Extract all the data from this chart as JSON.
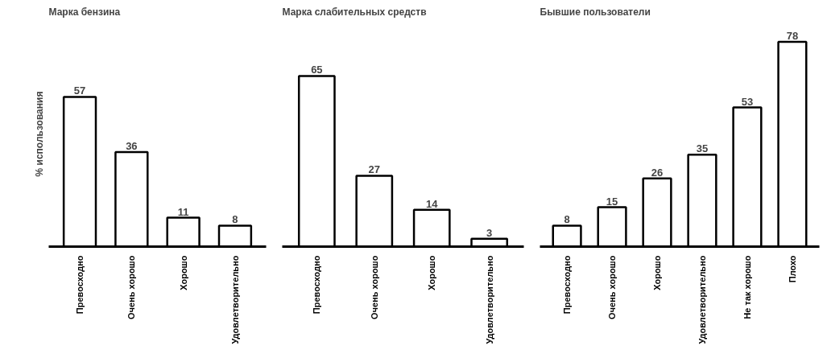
{
  "chart_data": [
    {
      "type": "bar",
      "title": "Марка бензина",
      "ylabel": "% использования",
      "categories": [
        "Превосходно",
        "Очень хорошо",
        "Хорошо",
        "Удовлетворительно"
      ],
      "values": [
        57,
        36,
        11,
        8
      ],
      "color": "#ffffff",
      "tick_labels": "x",
      "data_labels": true
    },
    {
      "type": "bar",
      "title": "Марка слабительных средств",
      "categories": [
        "Превосходно",
        "Очень хорошо",
        "Хорошо",
        "Удовлетворительно"
      ],
      "values": [
        65,
        27,
        14,
        3
      ],
      "color": "#ffffff",
      "tick_labels": "x",
      "data_labels": true
    },
    {
      "type": "bar",
      "title": "Бывшие пользователи",
      "categories": [
        "Превосходно",
        "Очень хорошо",
        "Хорошо",
        "Удовлетворительно",
        "Не так хорошо",
        "Плохо"
      ],
      "values": [
        8,
        15,
        26,
        35,
        53,
        78
      ],
      "color": "#ffffff",
      "tick_labels": "x",
      "data_labels": true
    }
  ]
}
